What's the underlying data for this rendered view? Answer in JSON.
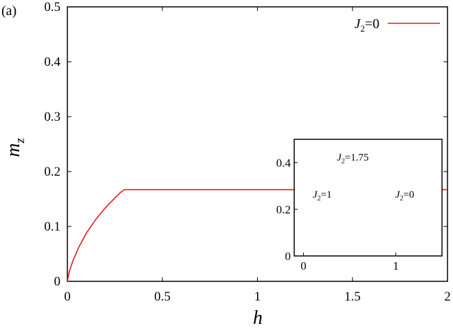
{
  "panel_label": "(a)",
  "chart_data": [
    {
      "type": "line",
      "xlabel": "h",
      "ylabel": "m",
      "ylabel_sub": "z",
      "xlim": [
        0,
        2
      ],
      "ylim": [
        0,
        0.5
      ],
      "x_ticks": [
        0,
        0.5,
        1,
        1.5,
        2
      ],
      "x_tick_labels": [
        "0",
        "0.5",
        "1",
        "1.5",
        "2"
      ],
      "y_ticks": [
        0,
        0.1,
        0.2,
        0.3,
        0.4,
        0.5
      ],
      "y_tick_labels": [
        "0",
        "0.1",
        "0.2",
        "0.3",
        "0.4",
        "0.5"
      ],
      "grid": false,
      "legend_position": "top-right",
      "series": [
        {
          "name": "J2=0",
          "label_main": "J",
          "label_sub": "2",
          "label_rest": "=0",
          "color": "#e41a1c",
          "marker": "none",
          "style": "solid",
          "x": [
            0,
            0.01,
            0.03,
            0.06,
            0.1,
            0.15,
            0.2,
            0.25,
            0.28,
            0.3,
            0.35,
            0.4,
            0.45,
            0.5,
            0.6,
            0.7,
            0.8,
            0.9,
            1.0,
            1.1,
            1.2,
            1.25,
            1.3,
            1.35,
            1.38,
            1.4,
            1.45,
            1.5,
            2.0
          ],
          "y": [
            0,
            0.018,
            0.038,
            0.062,
            0.088,
            0.113,
            0.134,
            0.152,
            0.162,
            0.167,
            0.167,
            0.167,
            0.167,
            0.167,
            0.167,
            0.167,
            0.167,
            0.167,
            0.167,
            0.167,
            0.167,
            0.167,
            0.167,
            0.167,
            0.167,
            0.167,
            0.167,
            0.167,
            0.167
          ]
        }
      ]
    },
    {
      "type": "line",
      "inset": true,
      "xlim": [
        -0.1,
        1.5
      ],
      "ylim": [
        0,
        0.5
      ],
      "x_ticks": [
        0,
        1
      ],
      "x_tick_labels": [
        "0",
        "1"
      ],
      "y_ticks": [
        0,
        0.2,
        0.4
      ],
      "y_tick_labels": [
        "0",
        "0.2",
        "0.4"
      ],
      "annotations": [
        {
          "text_main": "J",
          "text_sub": "2",
          "text_rest": "=1.75"
        },
        {
          "text_main": "J",
          "text_sub": "2",
          "text_rest": "=1"
        },
        {
          "text_main": "J",
          "text_sub": "2",
          "text_rest": "=0"
        }
      ]
    }
  ]
}
